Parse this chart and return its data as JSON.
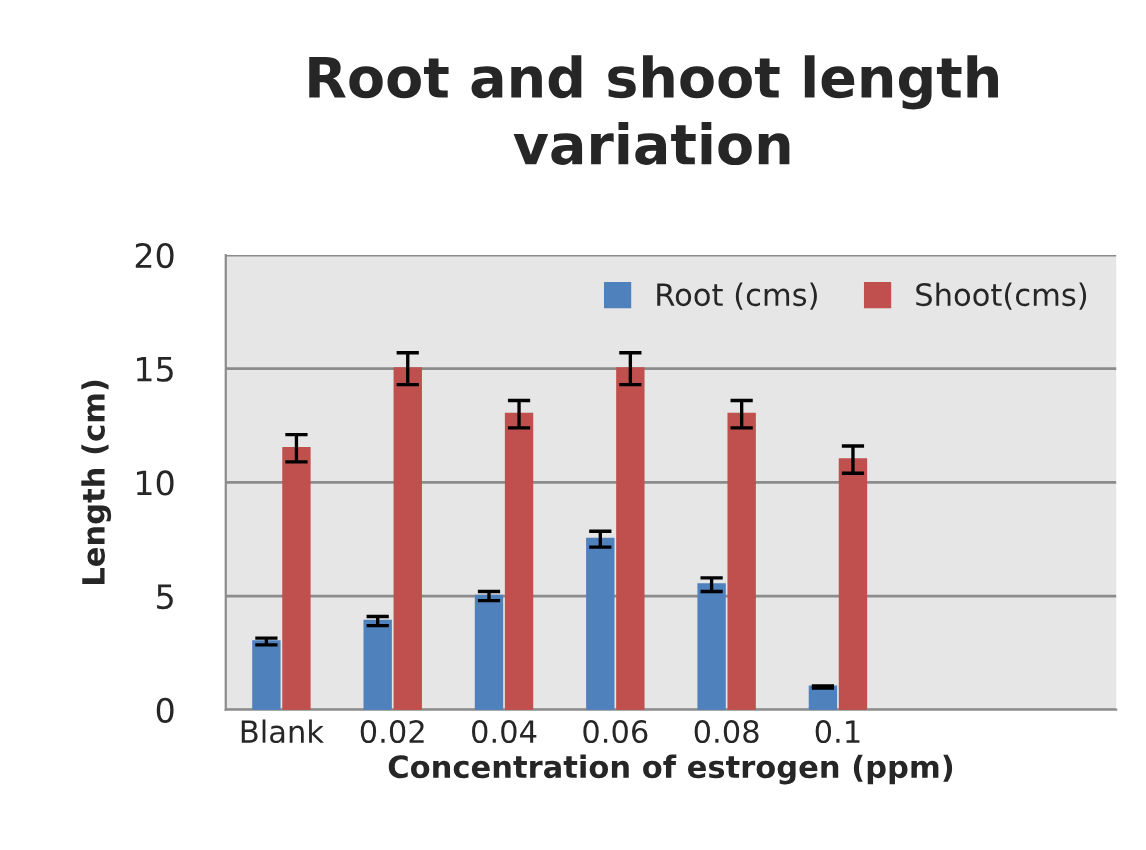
{
  "chart_data": {
    "type": "bar",
    "title": "Root and shoot length\nvariation",
    "xlabel": "Concentration of estrogen (ppm)",
    "ylabel": "Length (cm)",
    "categories": [
      "Blank",
      "0.02",
      "0.04",
      "0.06",
      "0.08",
      "0.1",
      null,
      null
    ],
    "series": [
      {
        "name": "Root (cms)",
        "color": "#4f81bd",
        "values": [
          3,
          3.9,
          5,
          7.5,
          5.5,
          1,
          null,
          null
        ],
        "errors": [
          0.15,
          0.2,
          0.2,
          0.35,
          0.3,
          0.05,
          null,
          null
        ]
      },
      {
        "name": "Shoot(cms)",
        "color": "#c0504d",
        "values": [
          11.5,
          15,
          13,
          15,
          13,
          11,
          null,
          null
        ],
        "errors": [
          0.6,
          0.7,
          0.6,
          0.7,
          0.6,
          0.6,
          null,
          null
        ]
      }
    ],
    "ylim": [
      0,
      20
    ],
    "yticks": [
      0,
      5,
      10,
      15,
      20
    ],
    "grid": "y",
    "legend": "top right"
  }
}
